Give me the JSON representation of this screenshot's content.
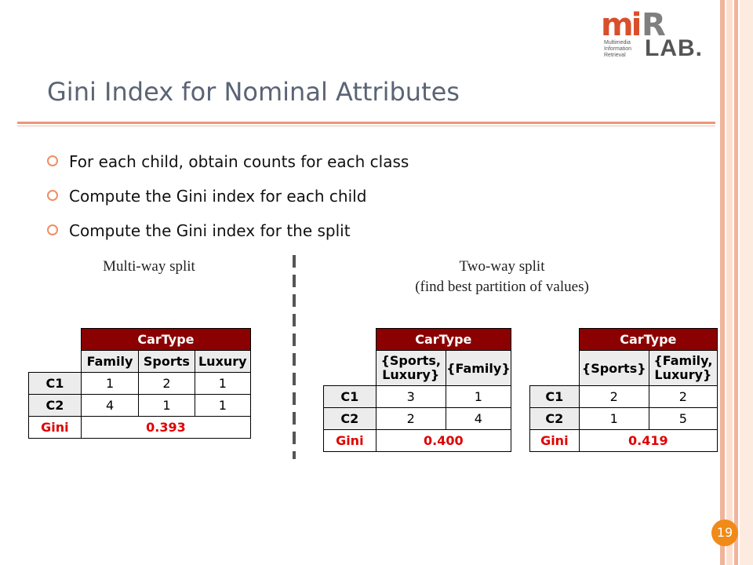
{
  "title": "Gini Index for Nominal Attributes",
  "logo": {
    "mi": "mi",
    "r": "R",
    "lab": "LAB.",
    "line1": "Multimedia",
    "line2": "Information",
    "line3": "Retrieval"
  },
  "bullets": [
    "For each child, obtain counts for each class",
    "Compute the Gini index for each child",
    "Compute the Gini index for the split"
  ],
  "captions": {
    "multi": "Multi-way split",
    "two_line1": "Two-way split",
    "two_line2": "(find best partition of values)"
  },
  "tables": {
    "t1": {
      "header": "CarType",
      "cols": [
        "Family",
        "Sports",
        "Luxury"
      ],
      "rows": [
        {
          "label": "C1",
          "vals": [
            "1",
            "2",
            "1"
          ]
        },
        {
          "label": "C2",
          "vals": [
            "4",
            "1",
            "1"
          ]
        }
      ],
      "gini_label": "Gini",
      "gini": "0.393"
    },
    "t2": {
      "header": "CarType",
      "cols": [
        "{Sports,\nLuxury}",
        "{Family}"
      ],
      "rows": [
        {
          "label": "C1",
          "vals": [
            "3",
            "1"
          ]
        },
        {
          "label": "C2",
          "vals": [
            "2",
            "4"
          ]
        }
      ],
      "gini_label": "Gini",
      "gini": "0.400"
    },
    "t3": {
      "header": "CarType",
      "cols": [
        "{Sports}",
        "{Family,\nLuxury}"
      ],
      "rows": [
        {
          "label": "C1",
          "vals": [
            "2",
            "2"
          ]
        },
        {
          "label": "C2",
          "vals": [
            "1",
            "5"
          ]
        }
      ],
      "gini_label": "Gini",
      "gini": "0.419"
    }
  },
  "page_number": "19",
  "colors": {
    "accent": "#ef9478",
    "header_bg": "#8b0000",
    "gini_text": "#e00000",
    "page_badge": "#f08a18"
  }
}
